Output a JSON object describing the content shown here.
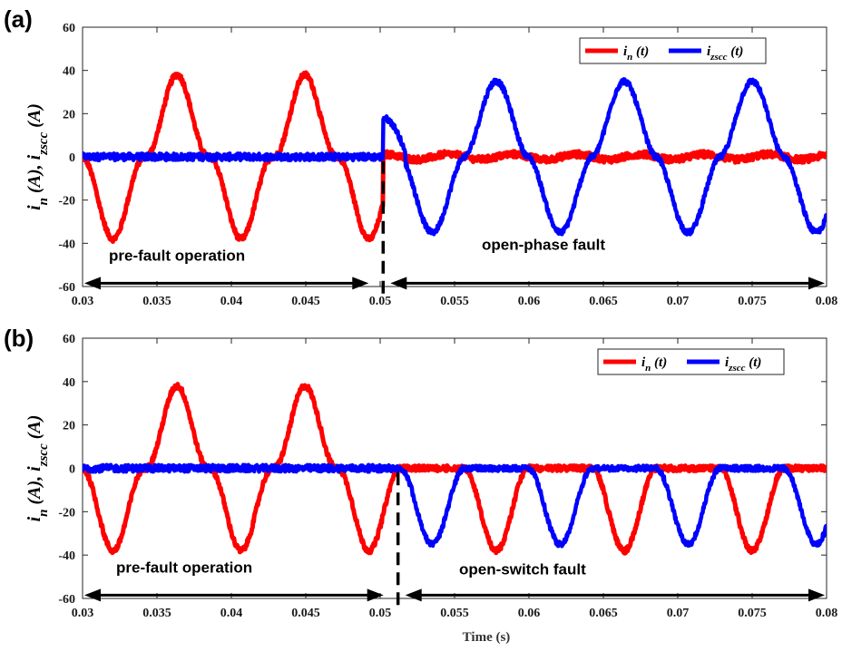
{
  "chart_data": [
    {
      "panel_label": "(a)",
      "type": "line",
      "ylabel": "i_n (A), i_zscc (A)",
      "ylabel_parts": {
        "s1": "i",
        "sub1": "n",
        "u1": " (A),  ",
        "s2": "i",
        "sub2": "zscc",
        "u2": " (A)"
      },
      "xlim": [
        0.03,
        0.08
      ],
      "ylim": [
        -60,
        60
      ],
      "xticks": [
        "0.03",
        "0.035",
        "0.04",
        "0.045",
        "0.05",
        "0.055",
        "0.06",
        "0.065",
        "0.07",
        "0.075",
        "0.08"
      ],
      "yticks": [
        "60",
        "40",
        "20",
        "0",
        "-20",
        "-40",
        "-60"
      ],
      "legend": {
        "position": "top-right",
        "series1": {
          "base": "i",
          "sub": "n",
          "tail": " (t)"
        },
        "series2": {
          "base": "i",
          "sub": "zscc",
          "tail": " (t)"
        }
      },
      "fault_time": 0.0502,
      "colors": {
        "in": "#ff0000",
        "izscc": "#0000ff"
      },
      "annotations": {
        "pre": "pre-fault operation",
        "post": "open-phase fault"
      },
      "series": [
        {
          "key": "in",
          "name": "i_n(t)",
          "pre_fault": "3-phase neutral current, 0..38 A peaks, period 0.0086 s",
          "post_fault": "≈ 0 A"
        },
        {
          "key": "izscc",
          "name": "i_zscc(t)",
          "pre_fault": "≈ 0 A",
          "post_fault": "±35 A, period 0.0086 s, initial jump to 18 A"
        }
      ]
    },
    {
      "panel_label": "(b)",
      "type": "line",
      "ylabel": "i_n (A), i_zscc (A)",
      "ylabel_parts": {
        "s1": "i",
        "sub1": "n",
        "u1": " (A),  ",
        "s2": "i",
        "sub2": "zscc",
        "u2": " (A)"
      },
      "xlabel": "Time (s)",
      "xlim": [
        0.03,
        0.08
      ],
      "ylim": [
        -60,
        60
      ],
      "xticks": [
        "0.03",
        "0.035",
        "0.04",
        "0.045",
        "0.05",
        "0.055",
        "0.06",
        "0.065",
        "0.07",
        "0.075",
        "0.08"
      ],
      "yticks": [
        "60",
        "40",
        "20",
        "0",
        "-20",
        "-40",
        "-60"
      ],
      "legend": {
        "position": "top-right",
        "series1": {
          "base": "i",
          "sub": "n",
          "tail": " (t)"
        },
        "series2": {
          "base": "i",
          "sub": "zscc",
          "tail": " (t)"
        }
      },
      "fault_time": 0.0512,
      "colors": {
        "in": "#ff0000",
        "izscc": "#0000ff"
      },
      "annotations": {
        "pre": "pre-fault operation",
        "post": "open-switch fault"
      },
      "series": [
        {
          "key": "in",
          "name": "i_n(t)",
          "pre_fault": "neutral current, -38..38 A, period 0.0086 s",
          "post_fault": "≈ 0 A"
        },
        {
          "key": "izscc",
          "name": "i_zscc(t)",
          "pre_fault": "≈ 0 A",
          "post_fault": "0..-35 A negative half pulses, period 0.0086 s"
        }
      ]
    }
  ]
}
